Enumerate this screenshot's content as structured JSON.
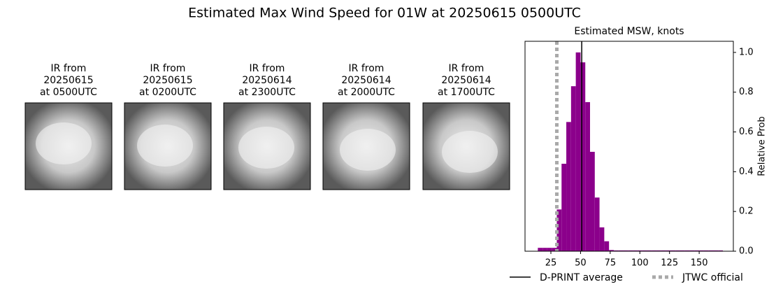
{
  "title": "Estimated Max Wind Speed for 01W at 20250615 0500UTC",
  "images": [
    {
      "caption": [
        "IR from",
        "20250615",
        "at 0500UTC"
      ]
    },
    {
      "caption": [
        "IR from",
        "20250615",
        "at 0200UTC"
      ]
    },
    {
      "caption": [
        "IR from",
        "20250614",
        "at 2300UTC"
      ]
    },
    {
      "caption": [
        "IR from",
        "20250614",
        "at 2000UTC"
      ]
    },
    {
      "caption": [
        "IR from",
        "20250614",
        "at 1700UTC"
      ]
    }
  ],
  "chart_data": {
    "type": "histogram",
    "title": "Estimated MSW, knots",
    "ylabel": "Relative Prob",
    "color": "#8b008b",
    "bins": [
      14,
      18,
      22,
      26,
      30,
      34,
      38,
      42,
      46,
      50,
      54,
      58,
      62,
      66,
      70,
      74,
      78,
      82,
      86,
      90,
      94,
      98,
      102,
      106,
      110,
      114,
      118,
      122,
      126,
      130,
      134,
      138,
      142,
      146,
      150,
      154,
      158,
      162,
      166,
      170
    ],
    "values": [
      0.017,
      0.017,
      0.017,
      0.017,
      0.21,
      0.44,
      0.65,
      0.83,
      1.0,
      0.95,
      0.75,
      0.5,
      0.27,
      0.12,
      0.05,
      0.006,
      0.004,
      0.004,
      0.004,
      0.004,
      0.004,
      0.004,
      0.004,
      0.004,
      0.004,
      0.004,
      0.004,
      0.004,
      0.004,
      0.004,
      0.004,
      0.004,
      0.004,
      0.004,
      0.004,
      0.004,
      0.004,
      0.004,
      0.004
    ],
    "xlim": [
      3.2,
      178.8
    ],
    "xticks": [
      25,
      50,
      75,
      100,
      125,
      150
    ],
    "ylim": [
      0,
      1.056
    ],
    "yticks": [
      {
        "value": 0,
        "label": "0.0"
      },
      {
        "value": 0.2,
        "label": "0.2"
      },
      {
        "value": 0.4,
        "label": "0.4"
      },
      {
        "value": 0.6,
        "label": "0.6"
      },
      {
        "value": 0.8,
        "label": "0.8"
      },
      {
        "value": 1.0,
        "label": "1.0"
      }
    ],
    "lines": [
      {
        "name": "D-PRINT average",
        "value": 51,
        "color": "#000000",
        "style": "solid"
      },
      {
        "name": "JTWC official",
        "value": 30,
        "color": "#a9a9a9",
        "style": "dotted"
      }
    ]
  }
}
